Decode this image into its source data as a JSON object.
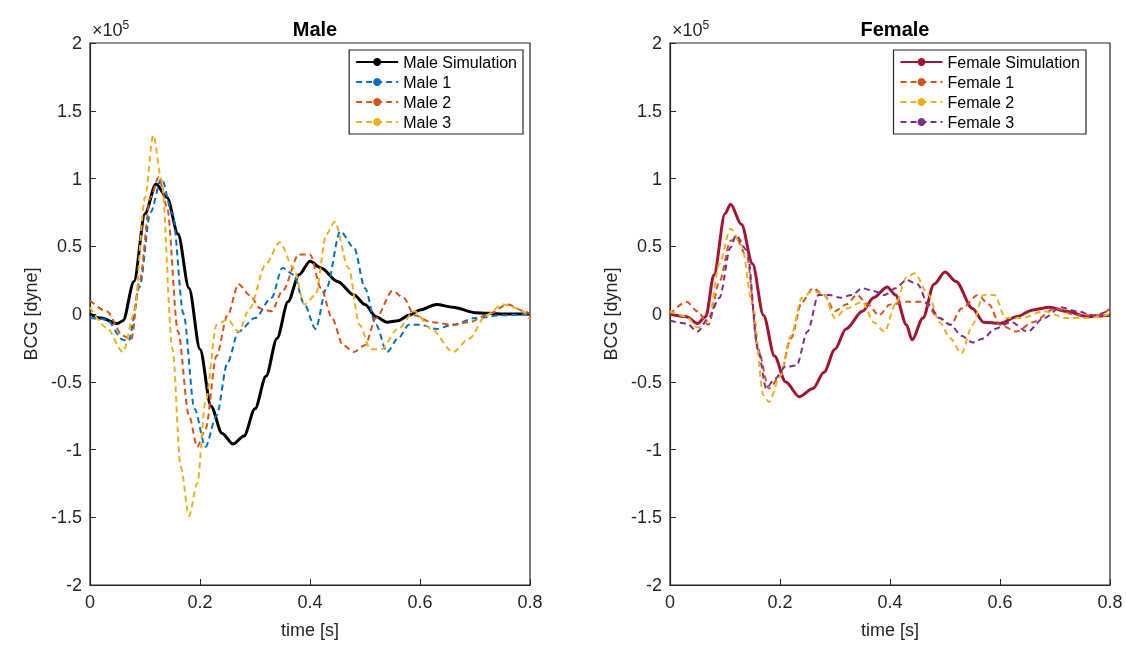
{
  "chart_data": [
    {
      "type": "line",
      "title": "Male",
      "xlabel": "time [s]",
      "ylabel": "BCG [dyne]",
      "annotations": [
        "×10$^{5}$"
      ],
      "xlim": [
        0,
        0.8
      ],
      "xticks": [
        0,
        0.2,
        0.4,
        0.6,
        0.8
      ],
      "ylim": [
        -2,
        2
      ],
      "yticks": [
        -2,
        -1.5,
        -1,
        -0.5,
        0,
        0.5,
        1,
        1.5,
        2
      ],
      "grid": false,
      "legend": "top right",
      "marker": "none",
      "series": [
        {
          "name": "Male Simulation",
          "color": "#000000",
          "line_style": "solid",
          "x": [
            0,
            0.02,
            0.05,
            0.06,
            0.08,
            0.1,
            0.12,
            0.14,
            0.16,
            0.18,
            0.2,
            0.22,
            0.24,
            0.26,
            0.28,
            0.3,
            0.32,
            0.34,
            0.36,
            0.38,
            0.4,
            0.42,
            0.45,
            0.48,
            0.5,
            0.52,
            0.54,
            0.56,
            0.58,
            0.6,
            0.63,
            0.66,
            0.7,
            0.75,
            0.8
          ],
          "values": [
            0,
            -0.03,
            -0.07,
            -0.05,
            0.24,
            0.74,
            0.96,
            0.86,
            0.59,
            0.19,
            -0.26,
            -0.68,
            -0.88,
            -0.96,
            -0.9,
            -0.7,
            -0.46,
            -0.18,
            0.09,
            0.29,
            0.39,
            0.34,
            0.24,
            0.14,
            0.07,
            -0.02,
            -0.06,
            -0.05,
            -0.01,
            0.03,
            0.07,
            0.05,
            0.01,
            0,
            0
          ]
        },
        {
          "name": "Male 1",
          "color": "#0072bd",
          "line_style": "dashed",
          "x": [
            0,
            0.03,
            0.06,
            0.07,
            0.09,
            0.11,
            0.13,
            0.15,
            0.17,
            0.19,
            0.21,
            0.23,
            0.25,
            0.27,
            0.3,
            0.33,
            0.35,
            0.37,
            0.39,
            0.41,
            0.43,
            0.455,
            0.48,
            0.5,
            0.52,
            0.54,
            0.56,
            0.58,
            0.6,
            0.63,
            0.66,
            0.7,
            0.75,
            0.8
          ],
          "values": [
            -0.03,
            -0.04,
            -0.19,
            -0.2,
            0.2,
            0.75,
            1,
            0.74,
            0,
            -0.7,
            -0.98,
            -0.75,
            -0.36,
            -0.13,
            -0.03,
            0.12,
            0.34,
            0.29,
            0.07,
            -0.11,
            0.19,
            0.61,
            0.49,
            0.19,
            -0.08,
            -0.28,
            -0.18,
            -0.08,
            -0.08,
            -0.11,
            -0.08,
            -0.03,
            -0.01,
            0
          ]
        },
        {
          "name": "Male 2",
          "color": "#d95319",
          "line_style": "dashed",
          "x": [
            0,
            0.03,
            0.06,
            0.075,
            0.09,
            0.11,
            0.125,
            0.14,
            0.16,
            0.18,
            0.195,
            0.21,
            0.23,
            0.25,
            0.27,
            0.29,
            0.31,
            0.33,
            0.35,
            0.38,
            0.4,
            0.42,
            0.44,
            0.46,
            0.48,
            0.5,
            0.52,
            0.55,
            0.57,
            0.59,
            0.62,
            0.66,
            0.69,
            0.72,
            0.76,
            0.79,
            0.8
          ],
          "values": [
            0.1,
            0.02,
            -0.16,
            -0.19,
            0.24,
            0.86,
            1.01,
            0.79,
            -0.13,
            -0.75,
            -0.98,
            -0.85,
            -0.31,
            -0.01,
            0.22,
            0.14,
            0.04,
            0.02,
            0.17,
            0.44,
            0.44,
            0.19,
            -0.03,
            -0.23,
            -0.28,
            -0.23,
            -0.03,
            0.17,
            0.12,
            -0.01,
            -0.06,
            -0.08,
            -0.06,
            -0.01,
            0.07,
            0.02,
            0
          ]
        },
        {
          "name": "Male 3",
          "color": "#edb120",
          "line_style": "dashed",
          "x": [
            0,
            0.03,
            0.06,
            0.08,
            0.1,
            0.115,
            0.13,
            0.15,
            0.165,
            0.18,
            0.195,
            0.21,
            0.23,
            0.25,
            0.27,
            0.29,
            0.32,
            0.345,
            0.37,
            0.39,
            0.41,
            0.43,
            0.445,
            0.47,
            0.49,
            0.51,
            0.53,
            0.56,
            0.59,
            0.62,
            0.66,
            0.69,
            0.72,
            0.75,
            0.78,
            0.8
          ],
          "values": [
            0.05,
            -0.1,
            -0.28,
            0,
            0.86,
            1.32,
            0.99,
            -0.26,
            -1.13,
            -1.49,
            -1.25,
            -0.65,
            -0.08,
            -0.04,
            -0.13,
            0.04,
            0.37,
            0.53,
            0.34,
            0.07,
            0.14,
            0.59,
            0.68,
            0.34,
            -0.08,
            -0.26,
            -0.26,
            -0.11,
            0.02,
            -0.11,
            -0.28,
            -0.18,
            -0.01,
            0.07,
            0.04,
            -0.04
          ]
        }
      ]
    },
    {
      "type": "line",
      "title": "Female",
      "xlabel": "time [s]",
      "ylabel": "BCG [dyne]",
      "annotations": [
        "×10$^{5}$"
      ],
      "xlim": [
        0,
        0.8
      ],
      "xticks": [
        0,
        0.2,
        0.4,
        0.6,
        0.8
      ],
      "ylim": [
        -2,
        2
      ],
      "yticks": [
        -2,
        -1.5,
        -1,
        -0.5,
        0,
        0.5,
        1,
        1.5,
        2
      ],
      "grid": false,
      "legend": "top right",
      "marker": "none",
      "series": [
        {
          "name": "Female Simulation",
          "color": "#a2142f",
          "line_style": "solid",
          "x": [
            0,
            0.03,
            0.05,
            0.065,
            0.08,
            0.1,
            0.11,
            0.13,
            0.15,
            0.17,
            0.19,
            0.21,
            0.235,
            0.26,
            0.28,
            0.3,
            0.32,
            0.35,
            0.37,
            0.395,
            0.41,
            0.43,
            0.44,
            0.46,
            0.48,
            0.5,
            0.52,
            0.55,
            0.57,
            0.6,
            0.63,
            0.66,
            0.69,
            0.72,
            0.76,
            0.8
          ],
          "values": [
            0,
            -0.02,
            -0.07,
            -0.02,
            0.29,
            0.74,
            0.81,
            0.66,
            0.37,
            -0.01,
            -0.31,
            -0.5,
            -0.61,
            -0.55,
            -0.43,
            -0.26,
            -0.11,
            0.02,
            0.12,
            0.2,
            0.14,
            -0.08,
            -0.19,
            -0.03,
            0.22,
            0.31,
            0.24,
            0.04,
            -0.06,
            -0.07,
            -0.02,
            0.03,
            0.05,
            0.02,
            -0.02,
            -0.01
          ]
        },
        {
          "name": "Female 1",
          "color": "#d95319",
          "line_style": "dashed",
          "x": [
            0,
            0.03,
            0.05,
            0.07,
            0.09,
            0.11,
            0.12,
            0.14,
            0.16,
            0.18,
            0.2,
            0.22,
            0.24,
            0.26,
            0.28,
            0.3,
            0.32,
            0.34,
            0.36,
            0.38,
            0.4,
            0.43,
            0.46,
            0.49,
            0.51,
            0.53,
            0.56,
            0.58,
            0.6,
            0.63,
            0.66,
            0.7,
            0.74,
            0.78,
            0.8
          ],
          "values": [
            0,
            0.09,
            0.02,
            -0.08,
            0.24,
            0.54,
            0.56,
            0.42,
            -0.26,
            -0.55,
            -0.46,
            -0.18,
            0.09,
            0.19,
            0.14,
            0.02,
            0.07,
            0.14,
            0.07,
            -0.01,
            0.07,
            0.09,
            0.09,
            -0.03,
            -0.08,
            0.04,
            0.14,
            0.07,
            -0.08,
            -0.13,
            -0.06,
            0.04,
            -0.01,
            -0.01,
            0.04
          ]
        },
        {
          "name": "Female 2",
          "color": "#edb120",
          "line_style": "dashed",
          "x": [
            0,
            0.03,
            0.05,
            0.07,
            0.09,
            0.11,
            0.13,
            0.15,
            0.17,
            0.18,
            0.2,
            0.22,
            0.24,
            0.26,
            0.28,
            0.3,
            0.32,
            0.35,
            0.37,
            0.39,
            0.41,
            0.43,
            0.445,
            0.47,
            0.49,
            0.51,
            0.53,
            0.55,
            0.57,
            0.59,
            0.61,
            0.64,
            0.68,
            0.72,
            0.76,
            0.8
          ],
          "values": [
            0.02,
            -0.02,
            -0.1,
            -0.05,
            0.37,
            0.63,
            0.51,
            0.07,
            -0.6,
            -0.65,
            -0.46,
            -0.16,
            0.12,
            0.17,
            0.14,
            -0.03,
            0.04,
            0.09,
            -0.06,
            -0.13,
            0.07,
            0.27,
            0.3,
            0.14,
            -0.06,
            -0.18,
            -0.29,
            -0.08,
            0.14,
            0.14,
            -0.03,
            -0.03,
            0.02,
            -0.03,
            -0.03,
            0
          ]
        },
        {
          "name": "Female 3",
          "color": "#7e2f8e",
          "line_style": "dashed",
          "x": [
            0,
            0.03,
            0.05,
            0.07,
            0.09,
            0.11,
            0.12,
            0.14,
            0.16,
            0.175,
            0.19,
            0.21,
            0.23,
            0.25,
            0.27,
            0.29,
            0.31,
            0.33,
            0.35,
            0.37,
            0.39,
            0.41,
            0.43,
            0.45,
            0.47,
            0.49,
            0.51,
            0.53,
            0.55,
            0.57,
            0.59,
            0.62,
            0.65,
            0.68,
            0.71,
            0.74,
            0.77,
            0.8
          ],
          "values": [
            -0.05,
            -0.07,
            -0.13,
            -0.03,
            0.12,
            0.49,
            0.58,
            0.47,
            -0.26,
            -0.55,
            -0.48,
            -0.39,
            -0.38,
            -0.13,
            0.14,
            0.14,
            0.12,
            0.14,
            0.19,
            0.17,
            0.14,
            0.19,
            0.25,
            0.22,
            0.07,
            -0.03,
            -0.08,
            -0.16,
            -0.21,
            -0.18,
            -0.11,
            -0.06,
            -0.13,
            -0.03,
            0.05,
            0.02,
            -0.01,
            0.03
          ]
        }
      ]
    }
  ]
}
